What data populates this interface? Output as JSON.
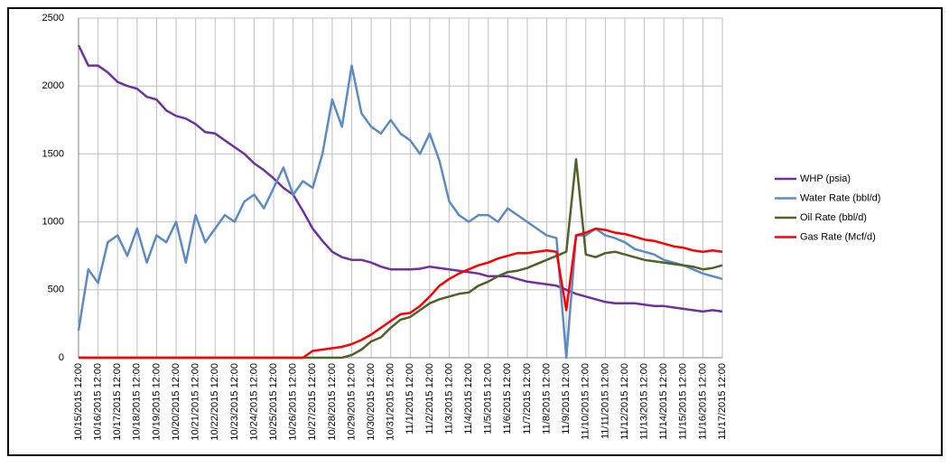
{
  "chart_data": {
    "type": "line",
    "categories": [
      "10/15/2015 12:00",
      null,
      "10/16/2015 12:00",
      null,
      "10/17/2015 12:00",
      null,
      "10/18/2015 12:00",
      null,
      "10/19/2015 12:00",
      null,
      "10/20/2015 12:00",
      null,
      "10/21/2015 12:00",
      null,
      "10/22/2015 12:00",
      null,
      "10/23/2015 12:00",
      null,
      "10/24/2015 12:00",
      null,
      "10/25/2015 12:00",
      null,
      "10/26/2015 12:00",
      null,
      "10/27/2015 12:00",
      null,
      "10/28/2015 12:00",
      null,
      "10/29/2015 12:00",
      null,
      "10/30/2015 12:00",
      null,
      "10/31/2015 12:00",
      null,
      "11/1/2015 12:00",
      null,
      "11/2/2015 12:00",
      null,
      "11/3/2015 12:00",
      null,
      "11/4/2015 12:00",
      null,
      "11/5/2015 12:00",
      null,
      "11/6/2015 12:00",
      null,
      "11/7/2015 12:00",
      null,
      "11/8/2015 12:00",
      null,
      "11/9/2015 12:00",
      null,
      "11/10/2015 12:00",
      null,
      "11/11/2015 12:00",
      null,
      "11/12/2015 12:00",
      null,
      "11/13/2015 12:00",
      null,
      "11/14/2015 12:00",
      null,
      "11/15/2015 12:00",
      null,
      "11/16/2015 12:00",
      null,
      "11/17/2015 12:00"
    ],
    "series": [
      {
        "name": "WHP (psia)",
        "color": "#7030a0",
        "values": [
          2300,
          2150,
          2150,
          2100,
          2030,
          2000,
          1980,
          1920,
          1900,
          1820,
          1780,
          1760,
          1720,
          1660,
          1650,
          1600,
          1550,
          1500,
          1430,
          1380,
          1320,
          1250,
          1200,
          1080,
          950,
          860,
          780,
          740,
          720,
          720,
          700,
          670,
          650,
          650,
          650,
          655,
          670,
          660,
          650,
          640,
          630,
          620,
          600,
          600,
          600,
          580,
          560,
          550,
          540,
          530,
          500,
          470,
          450,
          430,
          410,
          400,
          400,
          400,
          390,
          380,
          380,
          370,
          360,
          350,
          340,
          350,
          340
        ]
      },
      {
        "name": "Water Rate (bbl/d)",
        "color": "#5b8bc7",
        "values": [
          200,
          650,
          550,
          850,
          900,
          750,
          950,
          700,
          900,
          850,
          1000,
          700,
          1050,
          850,
          950,
          1050,
          1000,
          1150,
          1200,
          1100,
          1250,
          1400,
          1200,
          1300,
          1250,
          1500,
          1900,
          1700,
          2150,
          1800,
          1700,
          1650,
          1750,
          1650,
          1600,
          1500,
          1650,
          1450,
          1150,
          1050,
          1000,
          1050,
          1050,
          1000,
          1100,
          1050,
          1000,
          950,
          900,
          880,
          0,
          900,
          900,
          950,
          900,
          880,
          850,
          800,
          780,
          760,
          720,
          700,
          680,
          650,
          620,
          600,
          580
        ]
      },
      {
        "name": "Oil Rate (bbl/d)",
        "color": "#4f6228",
        "values": [
          0,
          0,
          0,
          0,
          0,
          0,
          0,
          0,
          0,
          0,
          0,
          0,
          0,
          0,
          0,
          0,
          0,
          0,
          0,
          0,
          0,
          0,
          0,
          0,
          0,
          0,
          0,
          0,
          20,
          60,
          120,
          150,
          220,
          280,
          300,
          350,
          400,
          430,
          450,
          470,
          480,
          530,
          560,
          600,
          630,
          640,
          660,
          690,
          720,
          750,
          780,
          1460,
          760,
          740,
          770,
          780,
          760,
          740,
          720,
          710,
          700,
          690,
          680,
          670,
          650,
          660,
          680
        ]
      },
      {
        "name": "Gas Rate (Mcf/d)",
        "color": "#ff0000",
        "values": [
          0,
          0,
          0,
          0,
          0,
          0,
          0,
          0,
          0,
          0,
          0,
          0,
          0,
          0,
          0,
          0,
          0,
          0,
          0,
          0,
          0,
          0,
          0,
          0,
          50,
          60,
          70,
          80,
          100,
          130,
          170,
          220,
          270,
          320,
          330,
          380,
          450,
          530,
          580,
          620,
          650,
          680,
          700,
          730,
          750,
          770,
          770,
          780,
          790,
          780,
          350,
          900,
          920,
          950,
          940,
          920,
          910,
          890,
          870,
          860,
          840,
          820,
          810,
          790,
          780,
          790,
          780
        ]
      }
    ],
    "ylim": [
      0,
      2500
    ],
    "yticks": [
      0,
      500,
      1000,
      1500,
      2000,
      2500
    ],
    "grid": true,
    "legend": "right"
  }
}
